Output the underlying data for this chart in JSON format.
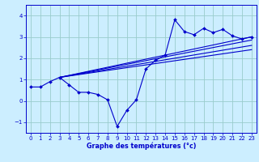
{
  "xlabel": "Graphe des températures (°c)",
  "bg_color": "#cceeff",
  "grid_color": "#99cccc",
  "line_color": "#0000cc",
  "xlim": [
    -0.5,
    23.5
  ],
  "ylim": [
    -1.5,
    4.5
  ],
  "yticks": [
    -1,
    0,
    1,
    2,
    3,
    4
  ],
  "xticks": [
    0,
    1,
    2,
    3,
    4,
    5,
    6,
    7,
    8,
    9,
    10,
    11,
    12,
    13,
    14,
    15,
    16,
    17,
    18,
    19,
    20,
    21,
    22,
    23
  ],
  "main_x": [
    0,
    1,
    2,
    3,
    4,
    5,
    6,
    7,
    8,
    9,
    10,
    11,
    12,
    13,
    14,
    15,
    16,
    17,
    18,
    19,
    20,
    21,
    22,
    23
  ],
  "main_y": [
    0.65,
    0.65,
    0.9,
    1.1,
    0.75,
    0.4,
    0.4,
    0.3,
    0.05,
    -1.2,
    -0.45,
    0.05,
    1.5,
    1.9,
    2.15,
    3.8,
    3.25,
    3.1,
    3.4,
    3.2,
    3.35,
    3.05,
    2.9,
    3.0
  ],
  "trend_lines": [
    {
      "x": [
        3,
        23
      ],
      "y": [
        1.1,
        3.0
      ]
    },
    {
      "x": [
        3,
        23
      ],
      "y": [
        1.1,
        2.85
      ]
    },
    {
      "x": [
        3,
        23
      ],
      "y": [
        1.1,
        2.6
      ]
    },
    {
      "x": [
        3,
        23
      ],
      "y": [
        1.1,
        2.4
      ]
    }
  ]
}
